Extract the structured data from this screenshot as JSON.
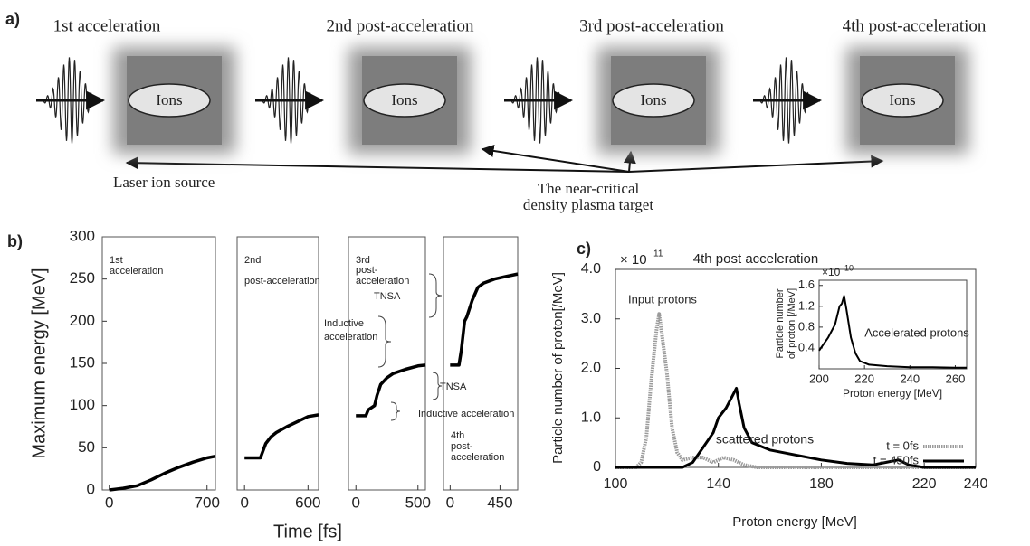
{
  "diagram": {
    "label": "a)",
    "stages": [
      {
        "title": "1st acceleration",
        "target": "Ions"
      },
      {
        "title": "2nd post-acceleration",
        "target": "Ions"
      },
      {
        "title": "3rd post-acceleration",
        "target": "Ions"
      },
      {
        "title": "4th post-acceleration",
        "target": "Ions"
      }
    ],
    "source_label": "Laser ion source",
    "target_label": [
      "The near-critical",
      "density plasma target"
    ]
  },
  "chart_data": [
    {
      "type": "line",
      "label": "b)",
      "ylabel": "Maximum energy [MeV]",
      "xlabel": "Time [fs]",
      "color": "#000000",
      "ylim": [
        0,
        300
      ],
      "yticks": [
        0,
        50,
        100,
        150,
        200,
        250,
        300
      ],
      "panels": [
        {
          "label": [
            "1st",
            "acceleration"
          ],
          "xlim": [
            -50,
            760
          ],
          "xticks": [
            0,
            700
          ],
          "x": [
            0,
            100,
            200,
            300,
            400,
            500,
            600,
            700,
            760
          ],
          "values": [
            0,
            2,
            5,
            12,
            20,
            27,
            33,
            38,
            40
          ]
        },
        {
          "label": [
            "2nd",
            "post-acceleration"
          ],
          "xlim": [
            -70,
            700
          ],
          "xticks": [
            0,
            600
          ],
          "x": [
            0,
            150,
            200,
            250,
            300,
            400,
            500,
            600,
            700
          ],
          "values": [
            38,
            38,
            55,
            63,
            68,
            75,
            81,
            87,
            89
          ]
        },
        {
          "label": [
            "3rd",
            "post-",
            "acceleration"
          ],
          "xlim": [
            -60,
            560
          ],
          "xticks": [
            0,
            500
          ],
          "x": [
            0,
            80,
            100,
            150,
            170,
            200,
            250,
            300,
            400,
            500,
            560
          ],
          "values": [
            88,
            88,
            95,
            100,
            112,
            125,
            133,
            138,
            143,
            147,
            148
          ]
        },
        {
          "label": [
            "4th",
            "post-",
            "acceleration"
          ],
          "xlim": [
            -60,
            610
          ],
          "xticks": [
            0,
            450
          ],
          "x": [
            0,
            80,
            100,
            130,
            150,
            200,
            250,
            300,
            400,
            500,
            610
          ],
          "values": [
            148,
            148,
            165,
            200,
            205,
            225,
            240,
            245,
            250,
            253,
            256
          ]
        }
      ],
      "annotations": [
        [
          "TNSA"
        ],
        [
          "Inductive",
          "acceleration"
        ],
        [
          "TNSA"
        ],
        [
          "Inductive acceleration"
        ]
      ]
    },
    {
      "type": "line",
      "label": "c)",
      "title": "4th post acceleration",
      "ylabel": "Particle number of proton[/MeV]",
      "xlabel": "Proton energy [MeV]",
      "y_scale": {
        "base": "× 10",
        "exponent": "11"
      },
      "xlim": [
        100,
        240
      ],
      "xticks": [
        100,
        140,
        180,
        220,
        240
      ],
      "ylim": [
        0,
        4
      ],
      "yticks": [
        0,
        {
          "value": 1,
          "label": "1.0"
        },
        {
          "value": 2,
          "label": "2.0"
        },
        {
          "value": 3,
          "label": "3.0"
        },
        {
          "value": 4,
          "label": "4.0"
        }
      ],
      "series": [
        {
          "name": "t = 0fs",
          "color": "#9a9a9a",
          "x": [
            100,
            108,
            110,
            112,
            114,
            116,
            117,
            118,
            120,
            122,
            124,
            126,
            130,
            134,
            138,
            142,
            146,
            150,
            155,
            240
          ],
          "values": [
            0,
            0,
            0.1,
            0.6,
            1.8,
            2.8,
            3.1,
            2.7,
            1.9,
            0.8,
            0.3,
            0.15,
            0.2,
            0.2,
            0.1,
            0.2,
            0.15,
            0.05,
            0,
            0
          ]
        },
        {
          "name": "t = 450fs",
          "color": "#000000",
          "x": [
            100,
            126,
            130,
            134,
            138,
            140,
            143,
            146,
            147,
            148,
            150,
            153,
            160,
            170,
            180,
            190,
            200,
            205,
            210,
            214,
            220,
            240
          ],
          "values": [
            0,
            0,
            0.1,
            0.4,
            0.7,
            1.0,
            1.2,
            1.5,
            1.6,
            1.3,
            0.8,
            0.5,
            0.35,
            0.25,
            0.15,
            0.08,
            0.05,
            0.1,
            0.15,
            0.05,
            0,
            0
          ]
        }
      ],
      "annotations": [
        "Input protons",
        "scattered protons"
      ],
      "inset": {
        "ylabel": [
          "Particle number",
          "of proton [/MeV]"
        ],
        "xlabel": "Proton energy [MeV]",
        "y_scale": {
          "base": "×10",
          "exponent": "10"
        },
        "annotation": "Accelerated protons",
        "xlim": [
          200,
          265
        ],
        "xticks": [
          200,
          220,
          240,
          260
        ],
        "ylim": [
          0,
          1.7
        ],
        "yticks": [
          0.4,
          0.8,
          1.2,
          1.6
        ],
        "color": "#000000",
        "x": [
          200,
          204,
          207,
          209,
          210,
          211,
          212,
          214,
          216,
          218,
          222,
          230,
          240,
          250,
          260,
          265
        ],
        "values": [
          0.35,
          0.6,
          0.85,
          1.2,
          1.25,
          1.4,
          1.15,
          0.6,
          0.3,
          0.15,
          0.08,
          0.05,
          0.03,
          0.03,
          0.02,
          0.02
        ]
      }
    }
  ]
}
